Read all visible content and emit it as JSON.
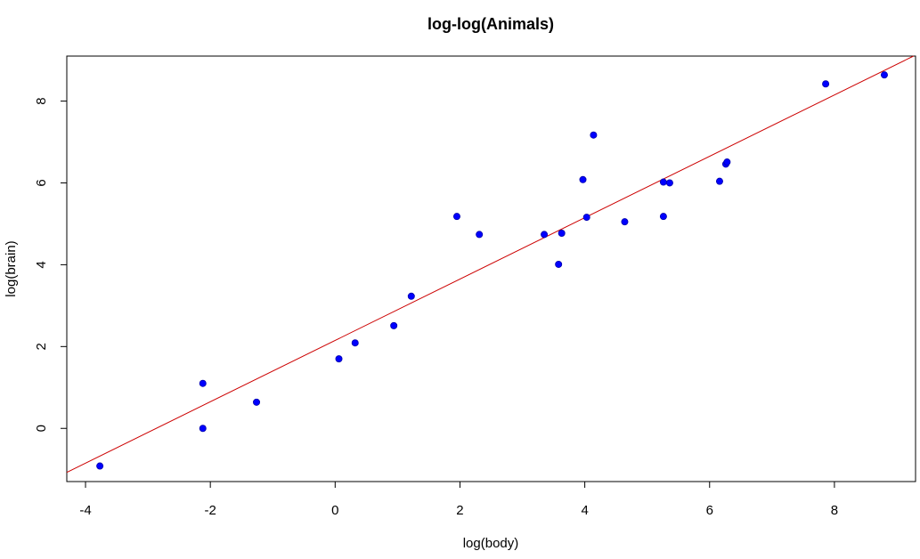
{
  "chart_data": {
    "type": "scatter",
    "title": "log-log(Animals)",
    "xlabel": "log(body)",
    "ylabel": "log(brain)",
    "xlim": [
      -4.3,
      9.3
    ],
    "ylim": [
      -1.3,
      9.1
    ],
    "xticks": [
      -4,
      -2,
      0,
      2,
      4,
      6,
      8
    ],
    "yticks": [
      0,
      2,
      4,
      6,
      8
    ],
    "grid": false,
    "point_color": "#0000ff",
    "line_color": "#cc0000",
    "points": [
      {
        "x": -3.77,
        "y": -0.92
      },
      {
        "x": -2.12,
        "y": 0.0
      },
      {
        "x": -2.12,
        "y": 1.1
      },
      {
        "x": -1.26,
        "y": 0.64
      },
      {
        "x": 0.06,
        "y": 1.7
      },
      {
        "x": 0.32,
        "y": 2.09
      },
      {
        "x": 0.94,
        "y": 2.51
      },
      {
        "x": 1.22,
        "y": 3.23
      },
      {
        "x": 1.95,
        "y": 5.18
      },
      {
        "x": 2.31,
        "y": 4.74
      },
      {
        "x": 3.35,
        "y": 4.74
      },
      {
        "x": 3.58,
        "y": 4.01
      },
      {
        "x": 3.63,
        "y": 4.77
      },
      {
        "x": 3.97,
        "y": 6.08
      },
      {
        "x": 4.03,
        "y": 5.16
      },
      {
        "x": 4.14,
        "y": 7.17
      },
      {
        "x": 4.64,
        "y": 5.05
      },
      {
        "x": 5.26,
        "y": 6.02
      },
      {
        "x": 5.26,
        "y": 5.18
      },
      {
        "x": 5.36,
        "y": 6.0
      },
      {
        "x": 6.16,
        "y": 6.04
      },
      {
        "x": 6.26,
        "y": 6.46
      },
      {
        "x": 6.28,
        "y": 6.51
      },
      {
        "x": 7.86,
        "y": 8.42
      },
      {
        "x": 8.8,
        "y": 8.64
      }
    ],
    "fit_line": {
      "intercept": 2.15,
      "slope": 0.75
    }
  }
}
